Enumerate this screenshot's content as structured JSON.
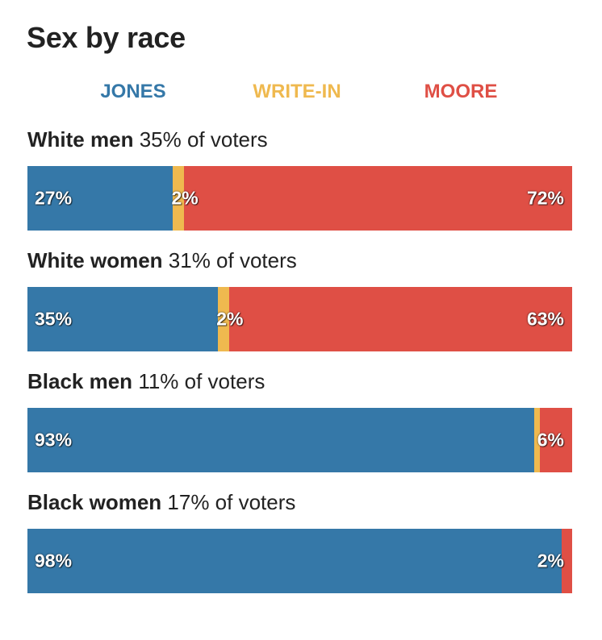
{
  "title": "Sex by race",
  "colors": {
    "jones": "#3578a8",
    "writein": "#efb94f",
    "moore": "#df4f45"
  },
  "legend": [
    {
      "label": "JONES",
      "key": "jones"
    },
    {
      "label": "WRITE-IN",
      "key": "writein"
    },
    {
      "label": "MOORE",
      "key": "moore"
    }
  ],
  "chart_data": {
    "type": "bar",
    "stacked": true,
    "orientation": "horizontal",
    "title": "Sex by race",
    "categories": [
      "White men",
      "White women",
      "Black men",
      "Black women"
    ],
    "category_shares": [
      "35% of voters",
      "31% of voters",
      "11% of voters",
      "17% of voters"
    ],
    "series": [
      {
        "name": "JONES",
        "key": "jones",
        "values": [
          27,
          35,
          93,
          98
        ],
        "labels": [
          "27%",
          "35%",
          "93%",
          "98%"
        ]
      },
      {
        "name": "WRITE-IN",
        "key": "writein",
        "values": [
          2,
          2,
          1,
          0
        ],
        "labels": [
          "2%",
          "2%",
          "",
          ""
        ]
      },
      {
        "name": "MOORE",
        "key": "moore",
        "values": [
          72,
          63,
          6,
          2
        ],
        "labels": [
          "72%",
          "63%",
          "6%",
          "2%"
        ]
      }
    ]
  }
}
